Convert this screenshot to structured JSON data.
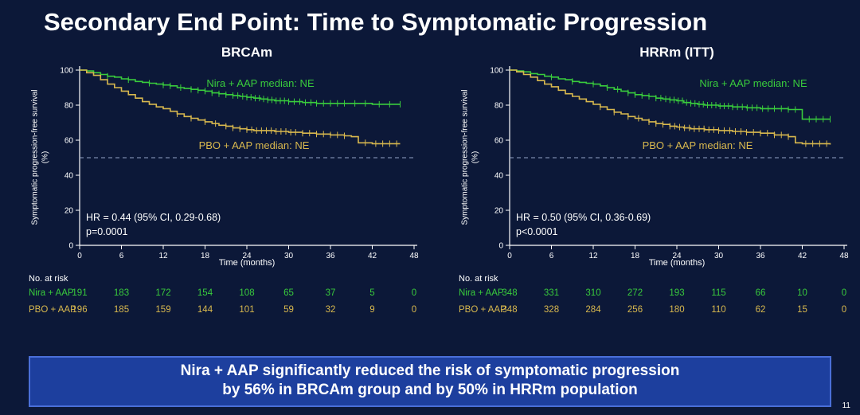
{
  "slide": {
    "title": "Secondary End Point: Time to Symptomatic Progression",
    "page_number": "11",
    "banner": {
      "line1": "Nira + AAP significantly reduced the risk of symptomatic progression",
      "line2": "by 56% in BRCAm group and by 50% in HRRm population"
    }
  },
  "colors": {
    "background": "#0c1838",
    "text": "#ffffff",
    "nira_green": "#39cc3c",
    "pbo_yellow": "#d8b84e",
    "banner_bg": "#1d3f9e",
    "banner_border": "#4a6fd8",
    "ref_line": "#93a5c8"
  },
  "chart_data": [
    {
      "type": "line",
      "subtype": "kaplan-meier",
      "title": "BRCAm",
      "xlabel": "Time (months)",
      "ylabel": "Symptomatic progression-free survival (%)",
      "xlim": [
        0,
        48
      ],
      "ylim": [
        0,
        100
      ],
      "xticks": [
        0,
        6,
        12,
        18,
        24,
        30,
        36,
        42,
        48
      ],
      "yticks": [
        0,
        20,
        40,
        60,
        80,
        100
      ],
      "reference_line_y": 50,
      "grid": false,
      "hr_text": "HR = 0.44 (95% CI, 0.29-0.68)",
      "p_text": "p=0.0001",
      "series": [
        {
          "name": "Nira + AAP",
          "label": "Nira + AAP median: NE",
          "color": "#39cc3c",
          "points": [
            [
              0,
              100
            ],
            [
              1,
              99.5
            ],
            [
              2,
              98.5
            ],
            [
              3,
              97.5
            ],
            [
              4,
              96.5
            ],
            [
              5,
              96
            ],
            [
              6,
              95
            ],
            [
              7,
              94.5
            ],
            [
              8,
              93.5
            ],
            [
              9,
              93
            ],
            [
              10,
              92.5
            ],
            [
              11,
              92
            ],
            [
              12,
              91.5
            ],
            [
              13,
              91
            ],
            [
              14,
              90
            ],
            [
              15,
              89.5
            ],
            [
              16,
              89
            ],
            [
              17,
              88.5
            ],
            [
              18,
              88
            ],
            [
              19,
              87
            ],
            [
              20,
              86.5
            ],
            [
              21,
              86
            ],
            [
              22,
              85.5
            ],
            [
              23,
              85
            ],
            [
              24,
              84.5
            ],
            [
              25,
              84
            ],
            [
              26,
              83.5
            ],
            [
              27,
              83
            ],
            [
              28,
              82.5
            ],
            [
              30,
              82
            ],
            [
              32,
              81.5
            ],
            [
              34,
              81
            ],
            [
              36,
              81
            ],
            [
              40,
              81
            ],
            [
              42,
              80.5
            ],
            [
              46,
              80.5
            ]
          ],
          "censor_x": [
            4,
            7,
            10,
            12,
            13,
            14.5,
            16,
            17,
            18,
            19,
            20,
            21,
            22,
            22.7,
            23.4,
            24,
            24.6,
            25.2,
            25.8,
            26.4,
            27,
            27.6,
            28.2,
            28.8,
            29.4,
            30,
            30.8,
            31.6,
            32.4,
            33.2,
            34,
            35,
            36,
            37,
            38,
            39.5,
            41,
            43,
            44.5,
            46
          ]
        },
        {
          "name": "PBO + AAP",
          "label": "PBO + AAP median: NE",
          "color": "#d8b84e",
          "points": [
            [
              0,
              100
            ],
            [
              1,
              98.5
            ],
            [
              2,
              97
            ],
            [
              3,
              94.5
            ],
            [
              4,
              92
            ],
            [
              5,
              90
            ],
            [
              6,
              88
            ],
            [
              7,
              86
            ],
            [
              8,
              84
            ],
            [
              9,
              82
            ],
            [
              10,
              80.5
            ],
            [
              11,
              79
            ],
            [
              12,
              78
            ],
            [
              13,
              76.5
            ],
            [
              14,
              75
            ],
            [
              15,
              73.5
            ],
            [
              16,
              72.5
            ],
            [
              17,
              71.5
            ],
            [
              18,
              70.5
            ],
            [
              19,
              69.5
            ],
            [
              20,
              68.5
            ],
            [
              21,
              68
            ],
            [
              22,
              67
            ],
            [
              23,
              66.5
            ],
            [
              24,
              66
            ],
            [
              25,
              65.5
            ],
            [
              26,
              65.5
            ],
            [
              28,
              65
            ],
            [
              30,
              64.5
            ],
            [
              32,
              64
            ],
            [
              34,
              63.5
            ],
            [
              36,
              63
            ],
            [
              38,
              62.5
            ],
            [
              39,
              62
            ],
            [
              40,
              58.5
            ],
            [
              42,
              58
            ],
            [
              46,
              58
            ]
          ],
          "censor_x": [
            14,
            16,
            18,
            19.5,
            21,
            22,
            23,
            24,
            24.7,
            25.4,
            26.1,
            26.8,
            27.5,
            28.2,
            28.9,
            29.6,
            30.3,
            31,
            32,
            33,
            34,
            35,
            36,
            37,
            38,
            41,
            42.5,
            43.5,
            44.5,
            45.5
          ]
        }
      ],
      "at_risk": {
        "header": "No. at risk",
        "time_points": [
          0,
          6,
          12,
          18,
          24,
          30,
          36,
          42,
          48
        ],
        "rows": [
          {
            "name": "Nira + AAP",
            "values": [
              191,
              183,
              172,
              154,
              108,
              65,
              37,
              5,
              0
            ]
          },
          {
            "name": "PBO + AAP",
            "values": [
              196,
              185,
              159,
              144,
              101,
              59,
              32,
              9,
              0
            ]
          }
        ]
      }
    },
    {
      "type": "line",
      "subtype": "kaplan-meier",
      "title": "HRRm (ITT)",
      "xlabel": "Time (months)",
      "ylabel": "Symptomatic progression-free survival (%)",
      "xlim": [
        0,
        48
      ],
      "ylim": [
        0,
        100
      ],
      "xticks": [
        0,
        6,
        12,
        18,
        24,
        30,
        36,
        42,
        48
      ],
      "yticks": [
        0,
        20,
        40,
        60,
        80,
        100
      ],
      "reference_line_y": 50,
      "grid": false,
      "hr_text": "HR = 0.50 (95% CI, 0.36-0.69)",
      "p_text": "p<0.0001",
      "series": [
        {
          "name": "Nira + AAP",
          "label": "Nira + AAP median: NE",
          "color": "#39cc3c",
          "points": [
            [
              0,
              100
            ],
            [
              1,
              99.5
            ],
            [
              2,
              99
            ],
            [
              3,
              98
            ],
            [
              4,
              97.5
            ],
            [
              5,
              96.5
            ],
            [
              6,
              96
            ],
            [
              7,
              95
            ],
            [
              8,
              94.5
            ],
            [
              9,
              93.5
            ],
            [
              10,
              93
            ],
            [
              11,
              92.5
            ],
            [
              12,
              92
            ],
            [
              13,
              91
            ],
            [
              14,
              90
            ],
            [
              15,
              89
            ],
            [
              16,
              88
            ],
            [
              17,
              87
            ],
            [
              18,
              86
            ],
            [
              19,
              85.5
            ],
            [
              20,
              85
            ],
            [
              21,
              84
            ],
            [
              22,
              83.5
            ],
            [
              23,
              83
            ],
            [
              24,
              82.5
            ],
            [
              25,
              81.5
            ],
            [
              26,
              81
            ],
            [
              27,
              80.5
            ],
            [
              28,
              80
            ],
            [
              30,
              79.5
            ],
            [
              32,
              79
            ],
            [
              34,
              78.5
            ],
            [
              36,
              78
            ],
            [
              38,
              78
            ],
            [
              40,
              77.5
            ],
            [
              41,
              77.5
            ],
            [
              42,
              72
            ],
            [
              46,
              72
            ]
          ],
          "censor_x": [
            6,
            9,
            12,
            14,
            15.5,
            17,
            18,
            19,
            20,
            21,
            21.7,
            22.4,
            23,
            23.6,
            24.2,
            24.8,
            25.4,
            26,
            26.6,
            27.2,
            27.8,
            28.4,
            29,
            29.6,
            30.2,
            30.8,
            31.4,
            32,
            32.7,
            33.4,
            34.1,
            34.8,
            35.5,
            36.3,
            37.1,
            38,
            39,
            40,
            41,
            43,
            44,
            45,
            46
          ]
        },
        {
          "name": "PBO + AAP",
          "label": "PBO + AAP median: NE",
          "color": "#d8b84e",
          "points": [
            [
              0,
              100
            ],
            [
              1,
              99
            ],
            [
              2,
              97.5
            ],
            [
              3,
              96
            ],
            [
              4,
              94
            ],
            [
              5,
              92
            ],
            [
              6,
              90.5
            ],
            [
              7,
              88.5
            ],
            [
              8,
              86.5
            ],
            [
              9,
              85
            ],
            [
              10,
              83.5
            ],
            [
              11,
              82
            ],
            [
              12,
              80.5
            ],
            [
              13,
              79
            ],
            [
              14,
              77.5
            ],
            [
              15,
              76
            ],
            [
              16,
              75
            ],
            [
              17,
              73.5
            ],
            [
              18,
              72.5
            ],
            [
              19,
              71.5
            ],
            [
              20,
              70.5
            ],
            [
              21,
              69.5
            ],
            [
              22,
              69
            ],
            [
              23,
              68
            ],
            [
              24,
              67.5
            ],
            [
              25,
              67
            ],
            [
              26,
              66.5
            ],
            [
              28,
              66
            ],
            [
              30,
              65.5
            ],
            [
              32,
              65
            ],
            [
              34,
              64.5
            ],
            [
              36,
              64
            ],
            [
              38,
              63
            ],
            [
              40,
              62
            ],
            [
              41,
              58.5
            ],
            [
              42,
              58
            ],
            [
              46,
              57.5
            ]
          ],
          "censor_x": [
            13,
            15,
            17,
            18.5,
            20,
            21,
            22,
            23,
            23.7,
            24.4,
            25.1,
            25.8,
            26.5,
            27.2,
            27.9,
            28.6,
            29.3,
            30,
            30.8,
            31.6,
            32.4,
            33.2,
            34,
            35,
            36,
            37,
            38,
            39,
            40,
            42.5,
            43.5,
            44.5,
            45.5
          ]
        }
      ],
      "at_risk": {
        "header": "No. at risk",
        "time_points": [
          0,
          6,
          12,
          18,
          24,
          30,
          36,
          42,
          48
        ],
        "rows": [
          {
            "name": "Nira + AAP",
            "values": [
              348,
              331,
              310,
              272,
              193,
              115,
              66,
              10,
              0
            ]
          },
          {
            "name": "PBO + AAP",
            "values": [
              348,
              328,
              284,
              256,
              180,
              110,
              62,
              15,
              0
            ]
          }
        ]
      }
    }
  ]
}
